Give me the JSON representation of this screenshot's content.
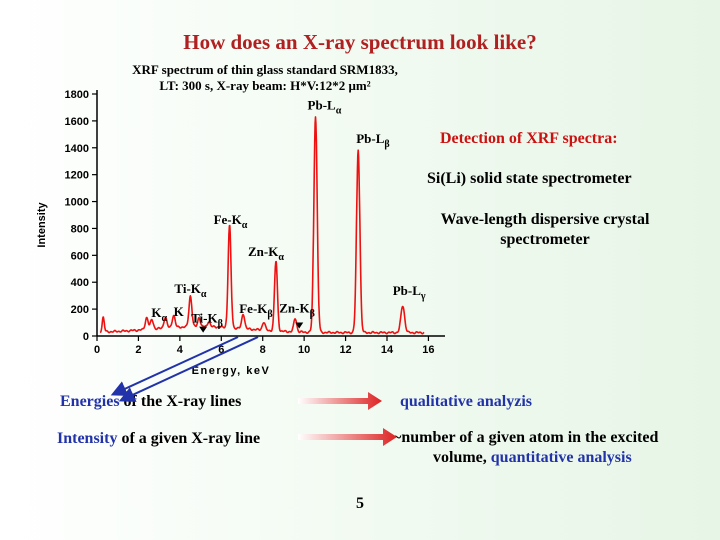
{
  "slide": {
    "title": "How does an X-ray spectrum look like?",
    "chart_caption_line1": "XRF spectrum of thin glass standard SRM1833,",
    "chart_caption_line2": "LT: 300 s, X-ray beam: H*V:12*2 μm²",
    "detection_heading": "Detection of XRF spectra:",
    "detection_item1": "Si(Li) solid state spectrometer",
    "detection_item2_line1": "Wave-length dispersive crystal",
    "detection_item2_line2": "spectrometer",
    "row1_prefix": "Energies",
    "row1_rest": " of the X-ray lines",
    "row1_result": "qualitative analyzis",
    "row2_prefix": "Intensity",
    "row2_rest": " of a given X-ray line",
    "row2_result_part1": "~number of a given atom in the excited",
    "row2_result_part2": "volume, ",
    "row2_result_part3": "quantitative analysis",
    "page_number": "5"
  },
  "colors": {
    "title": "#b02020",
    "spectrum": "#ee1111",
    "accent_red": "#cc1111",
    "accent_blue": "#2233aa"
  },
  "chart_data": {
    "type": "line",
    "title": "XRF spectrum of thin glass standard SRM1833, LT: 300 s, X-ray beam: H*V:12*2 μm²",
    "xlabel": "Energy, keV",
    "ylabel": "Intensity",
    "xlim": [
      0,
      16.8
    ],
    "ylim": [
      0,
      1800
    ],
    "xticks": [
      0,
      2,
      4,
      6,
      8,
      10,
      12,
      14,
      16
    ],
    "yticks": [
      0,
      200,
      400,
      600,
      800,
      1000,
      1200,
      1400,
      1600,
      1800
    ],
    "series": [
      {
        "name": "SRM1833",
        "peaks": [
          {
            "x": 0.3,
            "y": 110,
            "w": 0.05
          },
          {
            "x": 2.4,
            "y": 90,
            "w": 0.07
          },
          {
            "x": 2.65,
            "y": 70,
            "w": 0.07
          },
          {
            "x": 3.3,
            "y": 80,
            "w": 0.07
          },
          {
            "x": 3.7,
            "y": 90,
            "w": 0.07
          },
          {
            "x": 4.51,
            "y": 230,
            "w": 0.07
          },
          {
            "x": 4.93,
            "y": 70,
            "w": 0.06
          },
          {
            "x": 5.4,
            "y": 40,
            "w": 0.06
          },
          {
            "x": 6.4,
            "y": 760,
            "w": 0.07
          },
          {
            "x": 7.06,
            "y": 110,
            "w": 0.07
          },
          {
            "x": 8.05,
            "y": 60,
            "w": 0.07
          },
          {
            "x": 8.64,
            "y": 520,
            "w": 0.07
          },
          {
            "x": 9.57,
            "y": 100,
            "w": 0.07
          },
          {
            "x": 10.55,
            "y": 1610,
            "w": 0.08
          },
          {
            "x": 12.61,
            "y": 1360,
            "w": 0.08
          },
          {
            "x": 14.76,
            "y": 200,
            "w": 0.09
          }
        ]
      }
    ],
    "annotations": [
      {
        "id": "pb-la",
        "x": 10.55,
        "y": 1610,
        "text": "Pb-L",
        "sub": "α"
      },
      {
        "id": "pb-lb",
        "x": 12.61,
        "y": 1360,
        "text": "Pb-L",
        "sub": "β"
      },
      {
        "id": "fe-ka",
        "x": 6.4,
        "y": 760,
        "text": "Fe-K",
        "sub": "α"
      },
      {
        "id": "zn-ka",
        "x": 8.64,
        "y": 520,
        "text": "Zn-K",
        "sub": "α"
      },
      {
        "id": "ti-ka",
        "x": 4.51,
        "y": 230,
        "text": "Ti-K",
        "sub": "α"
      },
      {
        "id": "k-ka",
        "x": 3.3,
        "y": 80,
        "text": "K",
        "sub": "α"
      },
      {
        "id": "ti-kb",
        "x": 4.93,
        "y": 70,
        "text": "Ti-K",
        "sub": "β"
      },
      {
        "id": "fe-kb",
        "x": 7.06,
        "y": 110,
        "text": "Fe-K",
        "sub": "β"
      },
      {
        "id": "zn-kb",
        "x": 9.57,
        "y": 100,
        "text": "Zn-K",
        "sub": "β"
      },
      {
        "id": "pb-lg",
        "x": 14.76,
        "y": 200,
        "text": "Pb-L",
        "sub": "γ"
      },
      {
        "id": "k-kb",
        "x": 3.7,
        "y": 90,
        "text": "K",
        "sub": ""
      }
    ]
  }
}
